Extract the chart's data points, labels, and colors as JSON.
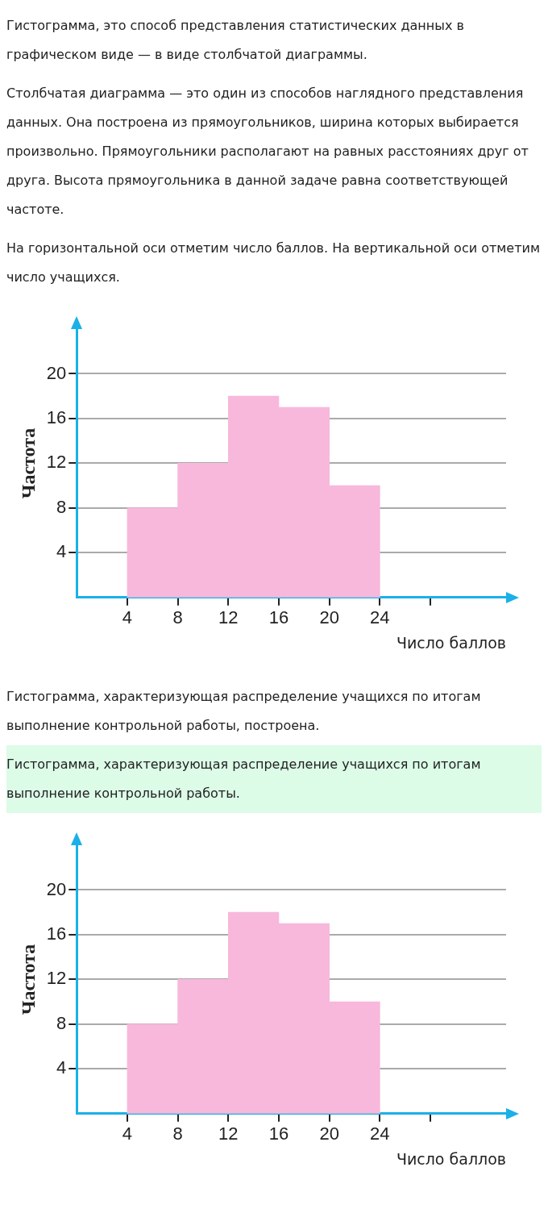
{
  "chart_data": [
    {
      "type": "histogram",
      "annotations": [
        "Гистограмма, это способ представления статистических данных в графическом виде — в виде столбчатой диаграммы.",
        "Столбчатая диаграмма — это один из способов наглядного представления данных. Она построена из прямоугольников, ширина которых выбирается произвольно. Прямоугольники располагают на равных расстояниях друг от друга. Высота прямоугольника в данной задаче равна соответствующей частоте.",
        "На горизонтальной оси отметим число баллов. На вертикальной оси отметим число учащихся."
      ],
      "xlabel": "Число баллов",
      "ylabel": "Частота",
      "bins": [
        4,
        8,
        12,
        16,
        20,
        24
      ],
      "values": [
        8,
        12,
        18,
        17,
        10
      ],
      "color": "#f7b8db",
      "xlim": [
        0,
        34
      ],
      "xticks": [
        4,
        8,
        12,
        16,
        20,
        24,
        {
          "value": 28,
          "label": null
        }
      ],
      "ylim": [
        0,
        24
      ],
      "yticks": [
        4,
        8,
        12,
        16,
        20
      ],
      "grid": "y",
      "legend": false
    },
    {
      "type": "histogram",
      "annotations": [
        "Гистограмма, характеризующая распределение учащихся по итогам выполнение контрольной работы, построена.",
        "Гистограмма, характеризующая распределение учащихся по итогам выполнение контрольной работы."
      ],
      "xlabel": "Число баллов",
      "ylabel": "Частота",
      "bins": [
        4,
        8,
        12,
        16,
        20,
        24
      ],
      "values": [
        8,
        12,
        18,
        17,
        10
      ],
      "color": "#f7b8db",
      "xlim": [
        0,
        34
      ],
      "xticks": [
        4,
        8,
        12,
        16,
        20,
        24,
        {
          "value": 28,
          "label": null
        }
      ],
      "ylim": [
        0,
        24
      ],
      "yticks": [
        4,
        8,
        12,
        16,
        20
      ],
      "grid": "y",
      "legend": false
    }
  ]
}
